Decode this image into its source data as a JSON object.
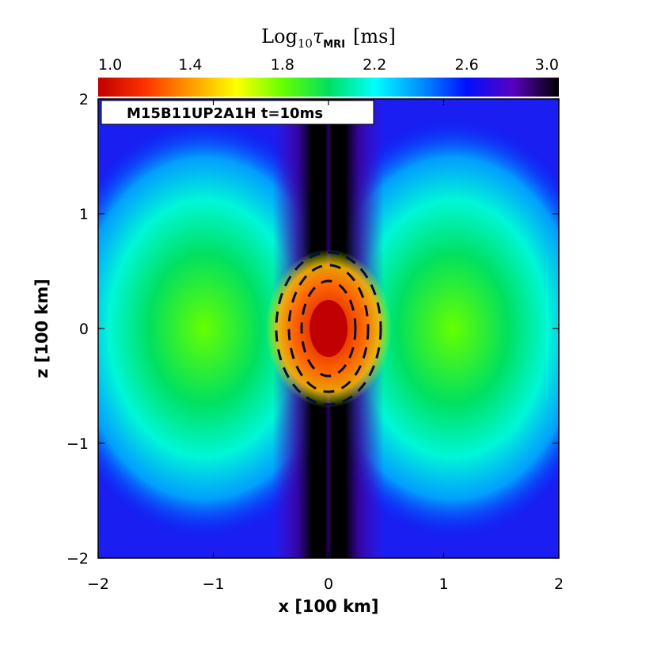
{
  "chart_data": {
    "type": "heatmap",
    "title": "M15B11UP2A1H t=10ms",
    "colorbar": {
      "label_prefix": "Log",
      "label_sub": "10",
      "label_symbol": "τ",
      "label_sub2": "MRI",
      "label_unit": "[ms]",
      "range": [
        1.0,
        3.0
      ],
      "ticks": [
        "1.0",
        "1.4",
        "1.8",
        "2.2",
        "2.6",
        "3.0"
      ],
      "tick_values": [
        1.0,
        1.4,
        1.8,
        2.2,
        2.6,
        3.0
      ],
      "colormap": [
        "#c00000",
        "#ff3000",
        "#ff9a00",
        "#ffff00",
        "#66ff00",
        "#00e060",
        "#00ffff",
        "#0090ff",
        "#0010ff",
        "#5a00c0",
        "#000000"
      ]
    },
    "xlabel": "x [100 km]",
    "ylabel": "z [100 km]",
    "xlim": [
      -2,
      2
    ],
    "ylim": [
      -2,
      2
    ],
    "xticks": [
      "−2",
      "−1",
      "0",
      "1",
      "2"
    ],
    "xtick_values": [
      -2,
      -1,
      0,
      1,
      2
    ],
    "yticks": [
      "−2",
      "−1",
      "0",
      "1",
      "2"
    ],
    "ytick_values": [
      -2,
      -1,
      0,
      1,
      2
    ],
    "features": {
      "background_level": 2.6,
      "lobe_level": 1.8,
      "core_level": 1.05,
      "polar_channel_level": 3.0
    }
  }
}
